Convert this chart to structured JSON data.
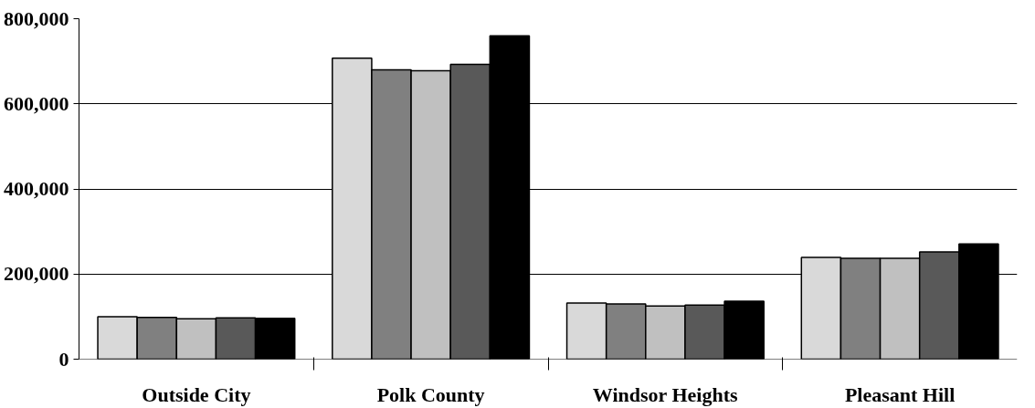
{
  "chart_data": {
    "type": "bar",
    "categories": [
      "Outside City",
      "Polk County",
      "Windsor Heights",
      "Pleasant Hill"
    ],
    "series": [
      {
        "color": "#d9d9d9",
        "values": [
          100000,
          707000,
          132000,
          239000
        ]
      },
      {
        "color": "#808080",
        "values": [
          98000,
          680000,
          130000,
          237000
        ]
      },
      {
        "color": "#c0c0c0",
        "values": [
          95000,
          678000,
          125000,
          237000
        ]
      },
      {
        "color": "#595959",
        "values": [
          97000,
          693000,
          127000,
          252000
        ]
      },
      {
        "color": "#000000",
        "values": [
          96000,
          760000,
          136000,
          271000
        ]
      }
    ],
    "ylim": [
      0,
      800000
    ],
    "yticks": [
      {
        "value": 0,
        "label": "0"
      },
      {
        "value": 200000,
        "label": "200,000"
      },
      {
        "value": 400000,
        "label": "400,000"
      },
      {
        "value": 600000,
        "label": "600,000"
      },
      {
        "value": 800000,
        "label": "800,000"
      }
    ],
    "grid": "y"
  }
}
